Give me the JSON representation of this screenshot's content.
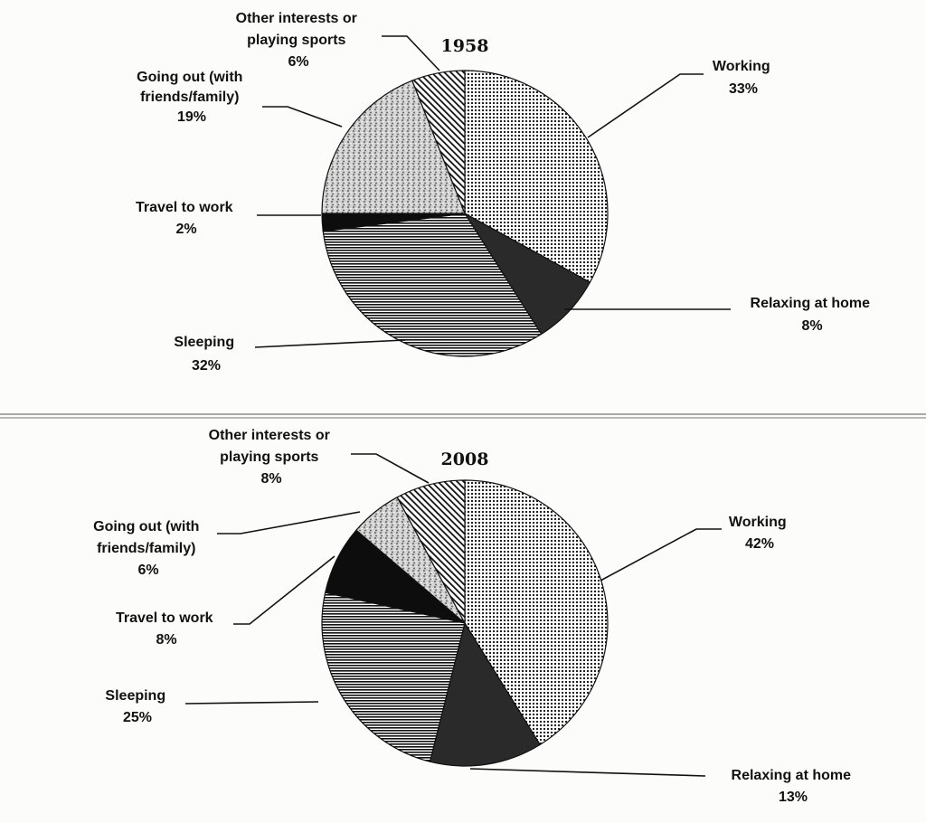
{
  "chart_data": [
    {
      "type": "pie",
      "title": "1958",
      "slices": [
        {
          "label": "Working",
          "value": 33,
          "value_label": "33%",
          "pattern": "dots"
        },
        {
          "label": "Relaxing at home",
          "value": 8,
          "value_label": "8%",
          "pattern": "solid-dark"
        },
        {
          "label": "Sleeping",
          "value": 32,
          "value_label": "32%",
          "pattern": "horizontal-lines"
        },
        {
          "label": "Travel to work",
          "value": 2,
          "value_label": "2%",
          "pattern": "solid-black"
        },
        {
          "label": "Going out (with friends/family)",
          "value": 19,
          "value_label": "19%",
          "pattern": "speckle"
        },
        {
          "label": "Other interests or playing sports",
          "value": 6,
          "value_label": "6%",
          "pattern": "diagonal-lines"
        }
      ]
    },
    {
      "type": "pie",
      "title": "2008",
      "slices": [
        {
          "label": "Working",
          "value": 42,
          "value_label": "42%",
          "pattern": "dots"
        },
        {
          "label": "Relaxing at home",
          "value": 13,
          "value_label": "13%",
          "pattern": "solid-dark"
        },
        {
          "label": "Sleeping",
          "value": 25,
          "value_label": "25%",
          "pattern": "horizontal-lines"
        },
        {
          "label": "Travel to work",
          "value": 8,
          "value_label": "8%",
          "pattern": "solid-black"
        },
        {
          "label": "Going out (with friends/family)",
          "value": 6,
          "value_label": "6%",
          "pattern": "speckle"
        },
        {
          "label": "Other interests or playing sports",
          "value": 8,
          "value_label": "8%",
          "pattern": "diagonal-lines"
        }
      ]
    }
  ],
  "labels": {
    "chart1": {
      "title": "1958",
      "working": [
        "Working",
        "33%"
      ],
      "relaxing": [
        "Relaxing at home",
        "8%"
      ],
      "sleeping": [
        "Sleeping",
        "32%"
      ],
      "travel": [
        "Travel to work",
        "2%"
      ],
      "going_out": [
        "Going out (with",
        "friends/family)",
        "19%"
      ],
      "other": [
        "Other interests or",
        "playing sports",
        "6%"
      ]
    },
    "chart2": {
      "title": "2008",
      "working": [
        "Working",
        "42%"
      ],
      "relaxing": [
        "Relaxing at home",
        "13%"
      ],
      "sleeping": [
        "Sleeping",
        "25%"
      ],
      "travel": [
        "Travel to work",
        "8%"
      ],
      "going_out": [
        "Going out (with",
        "friends/family)",
        "6%"
      ],
      "other": [
        "Other interests or",
        "playing sports",
        "8%"
      ]
    }
  },
  "colors": {
    "ink": "#111111",
    "paper": "#fcfcfa",
    "relaxing_fill": "#2a2a2a",
    "travel_fill": "#0d0d0d"
  }
}
